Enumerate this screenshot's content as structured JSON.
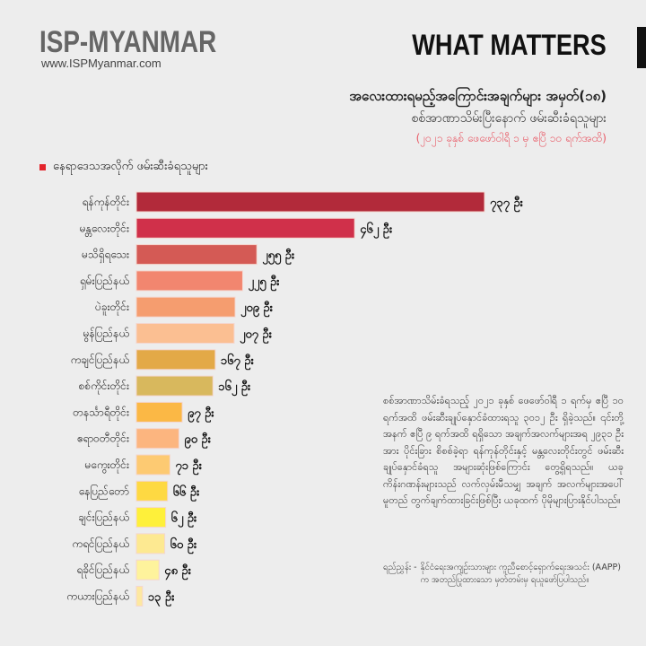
{
  "header": {
    "logo": "ISP-MYANMAR",
    "url": "www.ISPMyanmar.com",
    "section": "WHAT MATTERS"
  },
  "titles": {
    "title": "အလေးထားရမည့်အကြောင်းအချက်များ အမှတ်(၁၈)",
    "subtitle": "စစ်အာဏာသိမ်းပြီးနောက် ဖမ်းဆီးခံရသူများ",
    "date_range": "(၂၀၂၁ ခုနှစ် ဖေဖော်ဝါရီ ၁ မှ ဧပြီ ၁၀ ရက်အထိ)"
  },
  "chart_data": {
    "type": "bar",
    "orientation": "horizontal",
    "legend": "နေရာဒေသအလိုက် ဖမ်းဆီးခံရသူများ",
    "legend_color": "#e3242b",
    "unit": "ဦး",
    "categories": [
      "ရန်ကုန်တိုင်း",
      "မန္တလေးတိုင်း",
      "မသိရှိရသေး",
      "ရှမ်းပြည်နယ်",
      "ပဲခူးတိုင်း",
      "မွန်ပြည်နယ်",
      "ကချင်ပြည်နယ်",
      "စစ်ကိုင်းတိုင်း",
      "တနင်္သာရီတိုင်း",
      "ဧရာဝတီတိုင်း",
      "မကွေးတိုင်း",
      "နေပြည်တော်",
      "ချင်းပြည်နယ်",
      "ကရင်ပြည်နယ်",
      "ရခိုင်ပြည်နယ်",
      "ကယားပြည်နယ်"
    ],
    "values": [
      737,
      462,
      255,
      225,
      209,
      207,
      167,
      162,
      97,
      90,
      71,
      66,
      62,
      60,
      48,
      13
    ],
    "value_labels": [
      "၇၃၇ ဦး",
      "၄၆၂ ဦး",
      "၂၅၅ ဦး",
      "၂၂၅ ဦး",
      "၂၀၉ ဦး",
      "၂၀၇ ဦး",
      "၁၆၇ ဦး",
      "၁၆၂ ဦး",
      "၉၇ ဦး",
      "၉၀ ဦး",
      "၇၁ ဦး",
      "၆၆ ဦး",
      "၆၂ ဦး",
      "၆၀ ဦး",
      "၄၈ ဦး",
      "၁၃ ဦး"
    ],
    "colors": [
      "#b22a3a",
      "#d0304a",
      "#d45a55",
      "#f2866f",
      "#f59d6f",
      "#fbbf92",
      "#e3a947",
      "#d8b85d",
      "#fbb845",
      "#fcb57f",
      "#fdca72",
      "#fed942",
      "#fef03a",
      "#fde991",
      "#fef39c",
      "#fde8a0"
    ],
    "xlim": [
      0,
      737
    ],
    "grid": false
  },
  "note": {
    "paragraph": "စစ်အာဏာသိမ်းခံရသည့် ၂၀၂၁ ခုနှစ် ဖေဖော်ဝါရီ ၁ ရက်မှ ဧပြီ ၁၀ ရက်အထိ ဖမ်းဆီးချုပ်နှောင်ခံထားရသူ ၃၀၁၂ ဦး ရှိခဲ့သည်။ ၎င်းတို့အနက် ဧပြီ ၉ ရက်အထိ ရရှိသော အချက်အလက်များအရ ၂၉၃၁ ဦးအား ပိုင်းခြား စိစစ်ခဲ့ရာ ရန်ကုန်တိုင်းနှင့် မန္တလေးတိုင်းတွင် ဖမ်းဆီး ချုပ်နှောင်ခံရသူ အများဆုံးဖြစ်ကြောင်း တွေ့ရှိရသည်။ ယခုကိန်းဂဏန်းများသည် လက်လှမ်းမီသမျှ အချက် အလက်များအပေါ် မူတည် တွက်ချက်ထားခြင်းဖြစ်ပြီး ယခုထက် ပိုမိုများပြားနိုင်ပါသည်။",
    "source_label": "ရည်ညွှန်း -",
    "source_text": "နိုင်ငံရေးအကျဉ်းသားများ ကူညီစောင့်ရှောက်ရေးအသင်း (AAPP) က အတည်ပြုထားသော မှတ်တမ်းမှ ရယူဖော်ပြပါသည်။"
  }
}
